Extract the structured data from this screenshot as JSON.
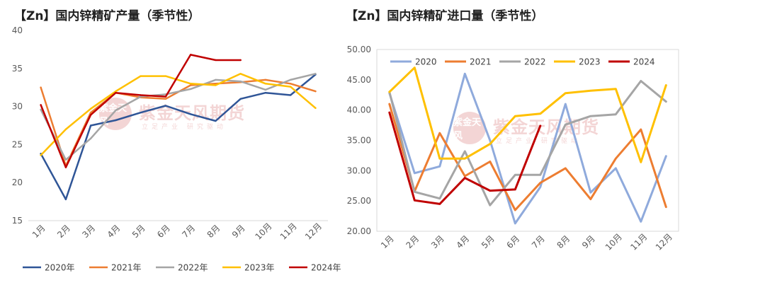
{
  "chart_data": [
    {
      "type": "line",
      "title": "【Zn】国内锌精矿产量（季节性）",
      "categories": [
        "1月",
        "2月",
        "3月",
        "4月",
        "5月",
        "6月",
        "7月",
        "8月",
        "9月",
        "10月",
        "11月",
        "12月"
      ],
      "ylim": [
        15,
        40
      ],
      "yticks": [
        "15",
        "20",
        "25",
        "30",
        "35",
        "40"
      ],
      "legend_position": "bottom",
      "series": [
        {
          "name": "2020年",
          "color": "#2f5597",
          "values": [
            23.8,
            17.8,
            27.5,
            28.2,
            29.2,
            30.1,
            29.0,
            28.1,
            31.0,
            31.8,
            31.5,
            34.2
          ]
        },
        {
          "name": "2021年",
          "color": "#ed7d31",
          "values": [
            32.5,
            22.2,
            29.2,
            31.8,
            31.2,
            31.0,
            32.8,
            33.0,
            33.2,
            33.5,
            33.0,
            32.0
          ]
        },
        {
          "name": "2022年",
          "color": "#a5a5a5",
          "values": [
            29.6,
            23.0,
            25.8,
            29.5,
            31.3,
            31.6,
            32.3,
            33.5,
            33.3,
            32.2,
            33.5,
            34.3
          ]
        },
        {
          "name": "2023年",
          "color": "#ffc000",
          "values": [
            23.6,
            27.0,
            29.7,
            32.0,
            34.0,
            34.0,
            33.0,
            32.8,
            34.3,
            33.0,
            32.6,
            29.8
          ]
        },
        {
          "name": "2024年",
          "color": "#c00000",
          "values": [
            30.2,
            22.0,
            28.9,
            31.8,
            31.5,
            31.3,
            36.8,
            36.1,
            36.1,
            null,
            null,
            null
          ]
        }
      ]
    },
    {
      "type": "line",
      "title": "【Zn】国内锌精矿进口量（季节性）",
      "categories": [
        "1月",
        "2月",
        "3月",
        "4月",
        "5月",
        "6月",
        "7月",
        "8月",
        "9月",
        "10月",
        "11月",
        "12月"
      ],
      "ylim": [
        20,
        50
      ],
      "yticks": [
        "20.00",
        "25.00",
        "30.00",
        "35.00",
        "40.00",
        "45.00",
        "50.00"
      ],
      "legend_position": "top",
      "series": [
        {
          "name": "2020",
          "color": "#8faadc",
          "values": [
            42.8,
            29.6,
            30.7,
            46.0,
            35.0,
            21.3,
            27.3,
            41.0,
            26.4,
            30.4,
            21.6,
            32.4
          ]
        },
        {
          "name": "2021",
          "color": "#ed7d31",
          "values": [
            41.0,
            26.6,
            36.2,
            29.1,
            31.5,
            23.5,
            28.0,
            30.4,
            25.3,
            32.0,
            36.8,
            24.0
          ]
        },
        {
          "name": "2022",
          "color": "#a5a5a5",
          "values": [
            43.0,
            26.5,
            25.4,
            33.2,
            24.3,
            29.3,
            29.3,
            37.6,
            39.0,
            39.3,
            44.8,
            41.4
          ]
        },
        {
          "name": "2023",
          "color": "#ffc000",
          "values": [
            43.0,
            47.0,
            32.0,
            32.0,
            34.4,
            39.0,
            39.4,
            42.8,
            43.2,
            43.5,
            31.4,
            44.1
          ]
        },
        {
          "name": "2024",
          "color": "#c00000",
          "values": [
            39.6,
            25.1,
            24.5,
            28.8,
            26.7,
            26.9,
            37.4,
            null,
            null,
            null,
            null,
            null
          ]
        }
      ]
    }
  ],
  "watermark": {
    "name": "紫金天风期货",
    "slogan": "立足产业 研究驱动",
    "seal": "紫金天风"
  }
}
